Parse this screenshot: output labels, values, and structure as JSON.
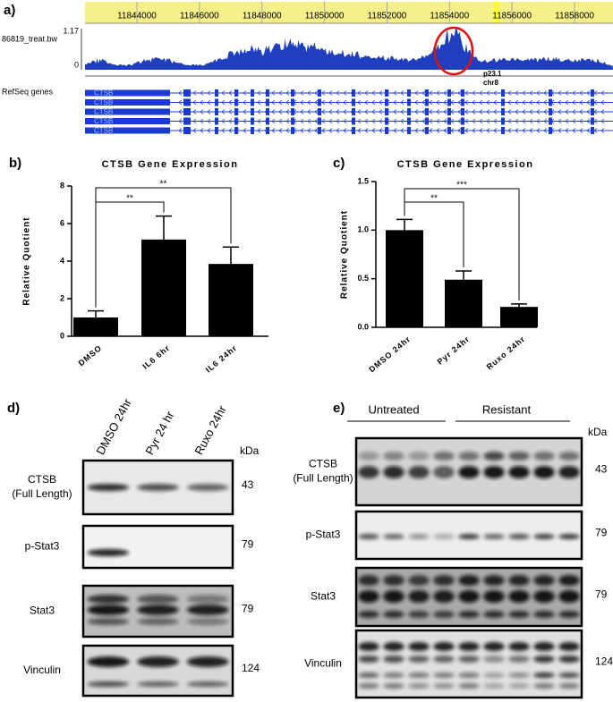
{
  "panel_a": {
    "label": "a)",
    "ruler": {
      "xlim": [
        11842340,
        11859230
      ],
      "ticks": [
        11844000,
        11846000,
        11848000,
        11850000,
        11852000,
        11854000,
        11856000,
        11858000
      ]
    },
    "track_name": "86819_treat.bw",
    "track_max": "1.17",
    "track_min": "0",
    "band": "p23.1",
    "chromosome": "chr8",
    "genes_label": "RefSeq genes",
    "genes": [
      "CTSB",
      "CTSB",
      "CTSB",
      "CTSB",
      "CTSB"
    ]
  },
  "chart_data": [
    {
      "panel": "b)",
      "type": "bar",
      "title": "CTSB Gene Expression",
      "y_label": "Relative Quotient",
      "categories": [
        "DMSO",
        "IL6 6hr",
        "IL6 24hr"
      ],
      "values": [
        1.0,
        5.15,
        3.85
      ],
      "errors": [
        0.35,
        1.25,
        0.9
      ],
      "color": "#000000",
      "ylim": [
        0,
        8
      ],
      "yticks": [
        0,
        2,
        4,
        6,
        8
      ],
      "annotations": [
        {
          "text": "**",
          "between": [
            0,
            1
          ]
        },
        {
          "text": "**",
          "between": [
            0,
            2
          ]
        }
      ]
    },
    {
      "panel": "c)",
      "type": "bar",
      "title": "CTSB Gene Expression",
      "y_label": "Relative Quotient",
      "categories": [
        "DMSO 24hr",
        "Pyr 24hr",
        "Ruxo 24hr"
      ],
      "values": [
        1.0,
        0.49,
        0.21
      ],
      "errors": [
        0.11,
        0.09,
        0.03
      ],
      "color": "#000000",
      "ylim": [
        0,
        1.5
      ],
      "yticks": [
        {
          "value": 0,
          "label": "0.0"
        },
        {
          "value": 0.5,
          "label": "0.5"
        },
        {
          "value": 1,
          "label": "1.0"
        },
        {
          "value": 1.5,
          "label": "1.5"
        }
      ],
      "annotations": [
        {
          "text": "**",
          "between": [
            0,
            1
          ]
        },
        {
          "text": "***",
          "between": [
            0,
            2
          ]
        }
      ]
    }
  ],
  "panel_d": {
    "label": "d)",
    "lanes": [
      "DMSO 24hr",
      "Pyr 24 hr",
      "Ruxo 24hr"
    ],
    "unit": "kDa",
    "rows": [
      {
        "name": "CTSB (Full Length)",
        "kda": 43
      },
      {
        "name": "p-Stat3",
        "kda": 79
      },
      {
        "name": "Stat3",
        "kda": 79
      },
      {
        "name": "Vinculin",
        "kda": 124
      }
    ]
  },
  "panel_e": {
    "label": "e)",
    "groups": [
      "Untreated",
      "Resistant"
    ],
    "unit": "kDa",
    "rows": [
      {
        "name": "CTSB (Full Length)",
        "kda": 43
      },
      {
        "name": "p-Stat3",
        "kda": 79
      },
      {
        "name": "Stat3",
        "kda": 79
      },
      {
        "name": "Vinculin",
        "kda": 124
      }
    ]
  }
}
